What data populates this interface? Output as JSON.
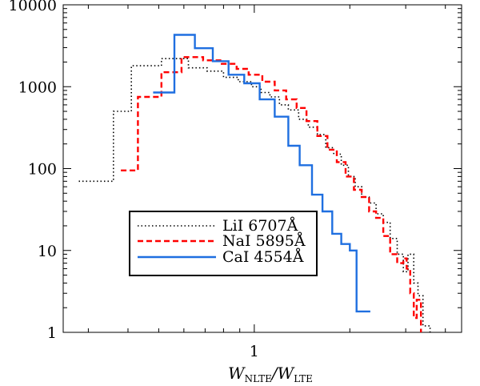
{
  "chart_data": {
    "type": "line",
    "step": true,
    "x_scale": "log",
    "y_scale": "log",
    "xlim": [
      0.25,
      4.5
    ],
    "ylim": [
      1,
      10000
    ],
    "x_ticks": [
      {
        "value": 1,
        "label": "1"
      }
    ],
    "y_ticks": [
      {
        "value": 1,
        "label": "1"
      },
      {
        "value": 10,
        "label": "10"
      },
      {
        "value": 100,
        "label": "100"
      },
      {
        "value": 1000,
        "label": "1000"
      },
      {
        "value": 10000,
        "label": "10000"
      }
    ],
    "xlabel": {
      "main": "W",
      "sub1": "NLTE",
      "slash": "/",
      "main2": "W",
      "sub2": "LTE"
    },
    "legend_position": "lower-left",
    "series": [
      {
        "name": "LiI 6707Å",
        "color": "#000000",
        "style": "dotted",
        "points": [
          [
            0.28,
            70
          ],
          [
            0.36,
            70
          ],
          [
            0.36,
            500
          ],
          [
            0.41,
            500
          ],
          [
            0.41,
            1800
          ],
          [
            0.51,
            1800
          ],
          [
            0.51,
            2200
          ],
          [
            0.62,
            2200
          ],
          [
            0.62,
            1700
          ],
          [
            0.71,
            1700
          ],
          [
            0.71,
            1550
          ],
          [
            0.8,
            1550
          ],
          [
            0.8,
            1300
          ],
          [
            0.89,
            1300
          ],
          [
            0.89,
            1150
          ],
          [
            0.98,
            1150
          ],
          [
            0.98,
            1000
          ],
          [
            1.05,
            1000
          ],
          [
            1.05,
            850
          ],
          [
            1.12,
            850
          ],
          [
            1.12,
            750
          ],
          [
            1.2,
            750
          ],
          [
            1.2,
            600
          ],
          [
            1.28,
            600
          ],
          [
            1.28,
            520
          ],
          [
            1.38,
            520
          ],
          [
            1.38,
            400
          ],
          [
            1.48,
            400
          ],
          [
            1.48,
            320
          ],
          [
            1.58,
            320
          ],
          [
            1.58,
            260
          ],
          [
            1.68,
            260
          ],
          [
            1.68,
            180
          ],
          [
            1.78,
            180
          ],
          [
            1.78,
            150
          ],
          [
            1.88,
            150
          ],
          [
            1.88,
            110
          ],
          [
            1.98,
            110
          ],
          [
            1.98,
            80
          ],
          [
            2.08,
            80
          ],
          [
            2.08,
            60
          ],
          [
            2.18,
            60
          ],
          [
            2.18,
            45
          ],
          [
            2.3,
            45
          ],
          [
            2.3,
            38
          ],
          [
            2.42,
            38
          ],
          [
            2.42,
            28
          ],
          [
            2.55,
            28
          ],
          [
            2.55,
            22
          ],
          [
            2.68,
            22
          ],
          [
            2.68,
            14
          ],
          [
            2.82,
            14
          ],
          [
            2.82,
            9
          ],
          [
            2.95,
            9
          ],
          [
            2.95,
            5.5
          ],
          [
            3.05,
            5.5
          ],
          [
            3.05,
            9
          ],
          [
            3.18,
            9
          ],
          [
            3.18,
            4
          ],
          [
            3.28,
            4
          ],
          [
            3.28,
            2.8
          ],
          [
            3.4,
            2.8
          ],
          [
            3.4,
            1.2
          ],
          [
            3.58,
            1.2
          ],
          [
            3.58,
            1
          ]
        ]
      },
      {
        "name": "NaI 5895Å",
        "color": "#ff0000",
        "style": "dashed",
        "points": [
          [
            0.38,
            95
          ],
          [
            0.43,
            95
          ],
          [
            0.43,
            750
          ],
          [
            0.51,
            750
          ],
          [
            0.51,
            1500
          ],
          [
            0.59,
            1500
          ],
          [
            0.59,
            2300
          ],
          [
            0.69,
            2300
          ],
          [
            0.69,
            2100
          ],
          [
            0.79,
            2100
          ],
          [
            0.79,
            1900
          ],
          [
            0.88,
            1900
          ],
          [
            0.88,
            1650
          ],
          [
            0.96,
            1650
          ],
          [
            0.96,
            1400
          ],
          [
            1.06,
            1400
          ],
          [
            1.06,
            1150
          ],
          [
            1.16,
            1150
          ],
          [
            1.16,
            900
          ],
          [
            1.26,
            900
          ],
          [
            1.26,
            700
          ],
          [
            1.36,
            700
          ],
          [
            1.36,
            550
          ],
          [
            1.46,
            550
          ],
          [
            1.46,
            380
          ],
          [
            1.58,
            380
          ],
          [
            1.58,
            250
          ],
          [
            1.7,
            250
          ],
          [
            1.7,
            170
          ],
          [
            1.82,
            170
          ],
          [
            1.82,
            120
          ],
          [
            1.94,
            120
          ],
          [
            1.94,
            80
          ],
          [
            2.06,
            80
          ],
          [
            2.06,
            55
          ],
          [
            2.18,
            55
          ],
          [
            2.18,
            45
          ],
          [
            2.3,
            45
          ],
          [
            2.3,
            30
          ],
          [
            2.42,
            30
          ],
          [
            2.42,
            25
          ],
          [
            2.55,
            25
          ],
          [
            2.55,
            15
          ],
          [
            2.68,
            15
          ],
          [
            2.68,
            9
          ],
          [
            2.82,
            9
          ],
          [
            2.82,
            7
          ],
          [
            2.95,
            7
          ],
          [
            2.95,
            8
          ],
          [
            3.02,
            8
          ],
          [
            3.02,
            6
          ],
          [
            3.1,
            6
          ],
          [
            3.1,
            3
          ],
          [
            3.18,
            3
          ],
          [
            3.18,
            1.5
          ],
          [
            3.25,
            1.5
          ],
          [
            3.25,
            2.5
          ],
          [
            3.35,
            2.5
          ],
          [
            3.35,
            1
          ]
        ]
      },
      {
        "name": "CaI 4554Å",
        "color": "#1f6fe0",
        "style": "solid",
        "points": [
          [
            0.48,
            850
          ],
          [
            0.56,
            850
          ],
          [
            0.56,
            4300
          ],
          [
            0.65,
            4300
          ],
          [
            0.65,
            2950
          ],
          [
            0.74,
            2950
          ],
          [
            0.74,
            2050
          ],
          [
            0.83,
            2050
          ],
          [
            0.83,
            1400
          ],
          [
            0.93,
            1400
          ],
          [
            0.93,
            1100
          ],
          [
            1.04,
            1100
          ],
          [
            1.04,
            700
          ],
          [
            1.16,
            700
          ],
          [
            1.16,
            430
          ],
          [
            1.28,
            430
          ],
          [
            1.28,
            190
          ],
          [
            1.39,
            190
          ],
          [
            1.39,
            110
          ],
          [
            1.52,
            110
          ],
          [
            1.52,
            48
          ],
          [
            1.64,
            48
          ],
          [
            1.64,
            30
          ],
          [
            1.76,
            30
          ],
          [
            1.76,
            16
          ],
          [
            1.88,
            16
          ],
          [
            1.88,
            12
          ],
          [
            2.0,
            12
          ],
          [
            2.0,
            10
          ],
          [
            2.1,
            10
          ],
          [
            2.1,
            1.8
          ],
          [
            2.32,
            1.8
          ]
        ]
      }
    ]
  }
}
